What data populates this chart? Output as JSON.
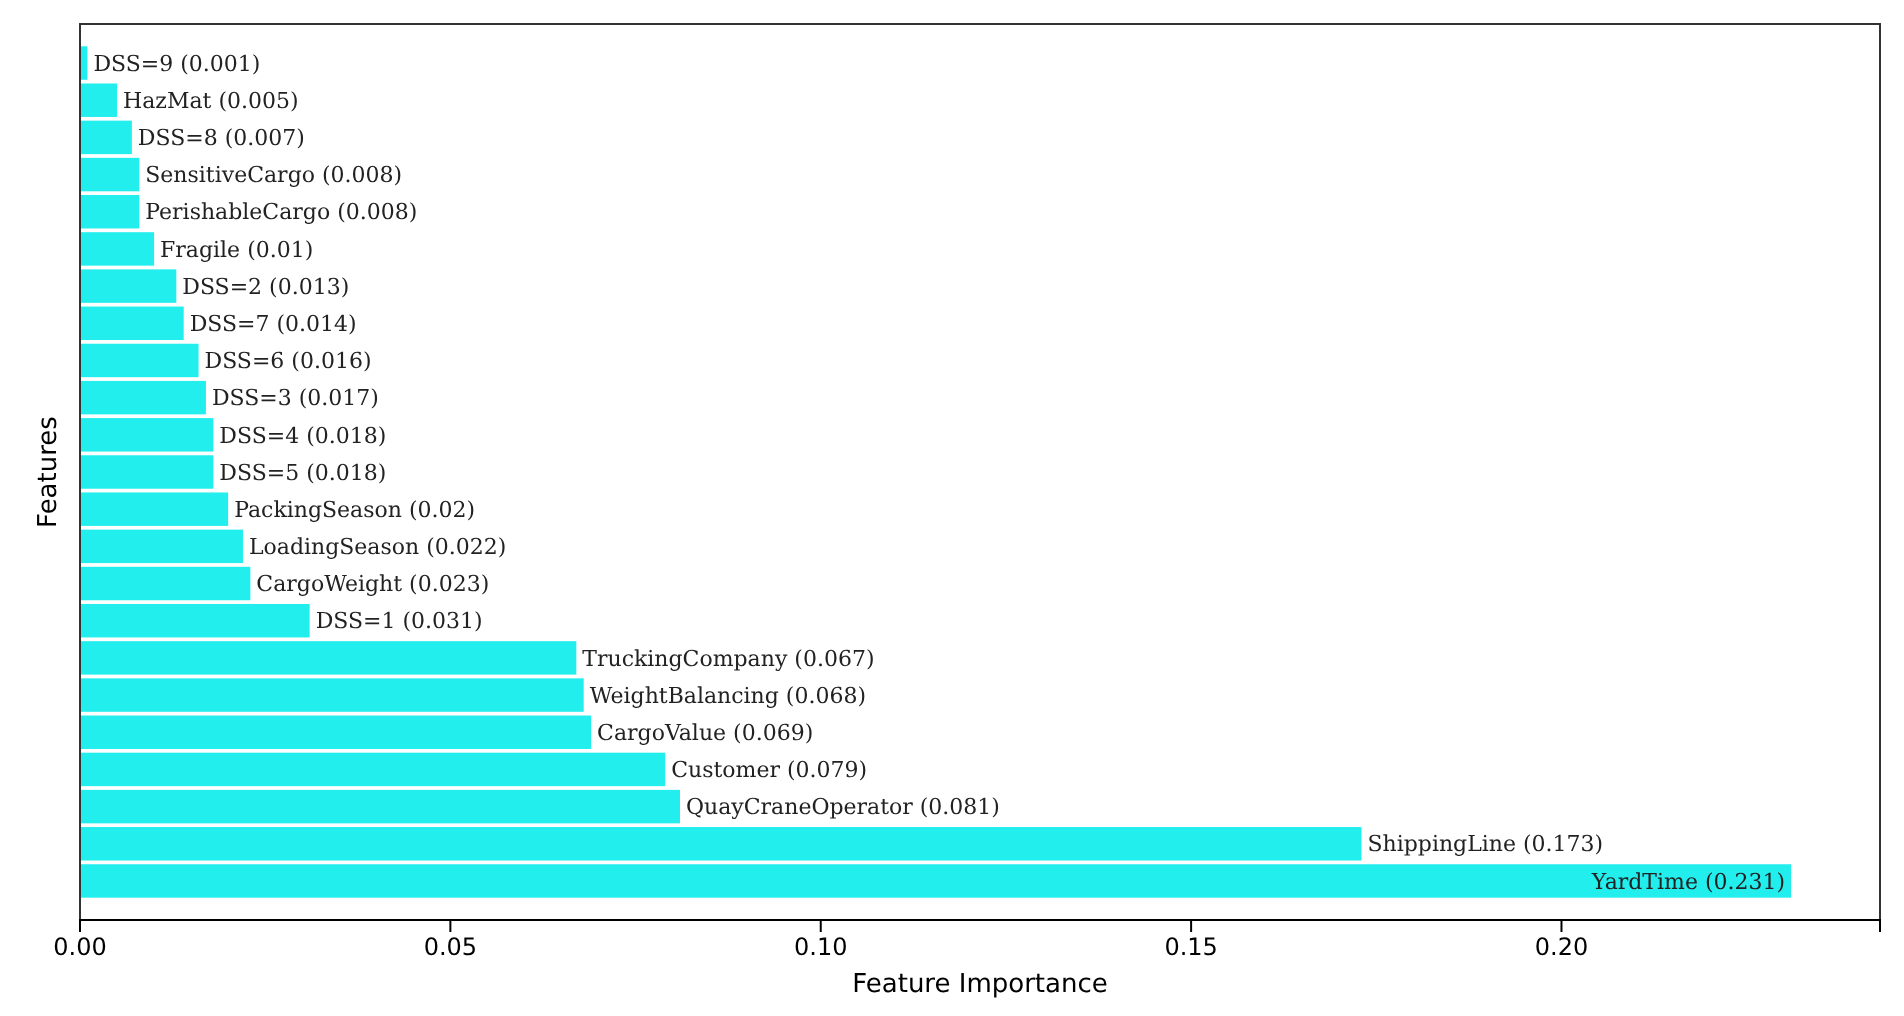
{
  "chart_data": {
    "type": "bar",
    "orientation": "horizontal",
    "xlabel": "Feature Importance",
    "ylabel": "Features",
    "categories": [
      null,
      null,
      null,
      null,
      null,
      null,
      null,
      null,
      null,
      null,
      null,
      null,
      null,
      null,
      null,
      null,
      null,
      null,
      null,
      null,
      null,
      null,
      null
    ],
    "values": [
      0.001,
      0.005,
      0.007,
      0.008,
      0.008,
      0.01,
      0.013,
      0.014,
      0.016,
      0.017,
      0.018,
      0.018,
      0.02,
      0.022,
      0.023,
      0.031,
      0.067,
      0.068,
      0.069,
      0.079,
      0.081,
      0.173,
      0.231
    ],
    "value_labels": [
      "DSS=9 (0.001)",
      "HazMat (0.005)",
      "DSS=8 (0.007)",
      "SensitiveCargo (0.008)",
      "PerishableCargo (0.008)",
      "Fragile (0.01)",
      "DSS=2 (0.013)",
      "DSS=7 (0.014)",
      "DSS=6 (0.016)",
      "DSS=3 (0.017)",
      "DSS=4 (0.018)",
      "DSS=5 (0.018)",
      "PackingSeason (0.02)",
      "LoadingSeason (0.022)",
      "CargoWeight (0.023)",
      "DSS=1 (0.031)",
      "TruckingCompany (0.067)",
      "WeightBalancing (0.068)",
      "CargoValue (0.069)",
      "Customer (0.079)",
      "QuayCraneOperator (0.081)",
      "ShippingLine (0.173)",
      "YardTime (0.231)"
    ],
    "color": "#22eeee",
    "tick_labels": "x",
    "grid": false,
    "xlim": [
      0,
      0.243
    ],
    "xticks": [
      {
        "value": 0,
        "label": "0.00"
      },
      {
        "value": 0.05,
        "label": "0.05"
      },
      {
        "value": 0.1,
        "label": "0.10"
      },
      {
        "value": 0.15,
        "label": "0.15"
      },
      {
        "value": 0.2,
        "label": "0.20"
      }
    ]
  }
}
